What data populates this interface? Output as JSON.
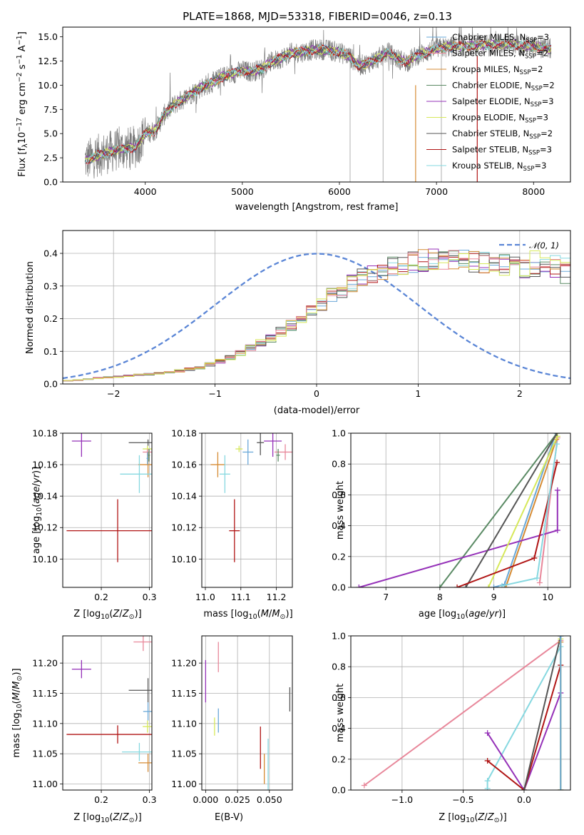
{
  "title": "PLATE=1868, MJD=53318, FIBERID=0046, z=0.13",
  "colors": {
    "Chabrier MILES": "#6aa8d8",
    "Salpeter MILES": "#e8879a",
    "Kroupa MILES": "#d58b34",
    "Chabrier ELODIE": "#5a8a64",
    "Salpeter ELODIE": "#9531b8",
    "Kroupa ELODIE": "#d6e85a",
    "Chabrier STELIB": "#555555",
    "Salpeter STELIB": "#b01414",
    "Kroupa STELIB": "#86d8e0",
    "data": "#7a7a7a",
    "gaussian": "#5b86d6"
  },
  "chart_data": [
    {
      "type": "line",
      "panel": "spectrum",
      "title": "PLATE=1868, MJD=53318, FIBERID=0046, z=0.13",
      "xlabel": "wavelength [Angstrom, rest frame]",
      "ylabel": "Flux [fλ10⁻¹⁷ erg cm⁻² s⁻¹ A⁻¹]",
      "xlim": [
        3150,
        8380
      ],
      "ylim": [
        0,
        16
      ],
      "xticks": [
        4000,
        5000,
        6000,
        7000,
        8000
      ],
      "yticks": [
        0.0,
        2.5,
        5.0,
        7.5,
        10.0,
        12.5,
        15.0
      ],
      "legend_position": "top-right",
      "legend": [
        "Chabrier MILES, N_SSP=3",
        "Salpeter MILES, N_SSP=2",
        "Kroupa MILES, N_SSP=2",
        "Chabrier ELODIE, N_SSP=2",
        "Salpeter ELODIE, N_SSP=3",
        "Kroupa ELODIE, N_SSP=3",
        "Chabrier STELIB, N_SSP=2",
        "Salpeter STELIB, N_SSP=3",
        "Kroupa STELIB, N_SSP=3"
      ],
      "continuum": {
        "x": [
          3380,
          3500,
          3700,
          3900,
          4000,
          4100,
          4200,
          4300,
          4400,
          4500,
          4600,
          4700,
          4800,
          4900,
          5000,
          5100,
          5200,
          5300,
          5400,
          5500,
          5600,
          5700,
          5800,
          5900,
          6000,
          6100,
          6200,
          6300,
          6400,
          6500,
          6600,
          6700,
          6800,
          6900,
          7000,
          7200,
          7400,
          7600,
          7800,
          8000,
          8200
        ],
        "y": [
          2.2,
          2.7,
          3.3,
          3.6,
          5.0,
          5.3,
          7.0,
          8.0,
          8.6,
          9.3,
          9.9,
          10.3,
          10.9,
          11.2,
          11.5,
          11.4,
          11.7,
          12.4,
          12.8,
          13.3,
          13.4,
          13.6,
          13.7,
          13.6,
          13.4,
          13.0,
          12.0,
          12.3,
          12.8,
          13.4,
          12.7,
          12.4,
          13.1,
          13.4,
          13.8,
          14.0,
          14.1,
          14.2,
          14.2,
          14.0,
          13.7
        ]
      }
    },
    {
      "type": "line",
      "panel": "residual-histogram",
      "xlabel": "(data-model)/error",
      "ylabel": "Normed distribution",
      "xlim": [
        -2.5,
        2.5
      ],
      "ylim": [
        0,
        0.47
      ],
      "xticks": [
        -2,
        -1,
        0,
        1,
        2
      ],
      "yticks": [
        0.0,
        0.1,
        0.2,
        0.3,
        0.4
      ],
      "legend_position": "top-right",
      "legend": [
        "𝒩(0, 1)"
      ],
      "bin_width": 0.1,
      "bin_start": -2.5,
      "envelope": [
        0.01,
        0.012,
        0.015,
        0.018,
        0.02,
        0.022,
        0.025,
        0.028,
        0.03,
        0.033,
        0.036,
        0.04,
        0.045,
        0.05,
        0.06,
        0.07,
        0.08,
        0.095,
        0.11,
        0.125,
        0.14,
        0.16,
        0.18,
        0.2,
        0.22,
        0.245,
        0.27,
        0.29,
        0.31,
        0.325,
        0.34,
        0.35,
        0.36,
        0.368,
        0.374,
        0.378,
        0.38,
        0.382,
        0.38,
        0.378,
        0.375,
        0.372,
        0.368,
        0.364,
        0.36,
        0.355,
        0.35,
        0.345,
        0.34,
        0.335,
        0.33,
        0.32,
        0.31,
        0.3,
        0.29,
        0.28,
        0.27,
        0.255,
        0.24,
        0.225,
        0.21,
        0.195,
        0.18,
        0.165,
        0.15,
        0.14,
        0.13,
        0.12,
        0.11,
        0.1,
        0.09,
        0.08,
        0.07,
        0.065,
        0.06,
        0.055,
        0.05,
        0.045,
        0.04,
        0.035,
        0.03,
        0.028,
        0.025,
        0.022,
        0.02,
        0.018,
        0.016,
        0.014,
        0.012,
        0.01
      ]
    },
    {
      "type": "scatter",
      "panel": "age-vs-Z",
      "xlabel": "Z [log10(Z/Z⊙)]",
      "ylabel": "age  [log10(age/yr)]",
      "xlim": [
        0.12,
        0.305
      ],
      "ylim": [
        10.082,
        10.18
      ],
      "xticks": [
        0.2,
        0.3
      ],
      "yticks": [
        10.1,
        10.12,
        10.14,
        10.16,
        10.18
      ],
      "points": [
        {
          "model": "Salpeter ELODIE",
          "x": 0.159,
          "xerr": 0.02,
          "y": 10.175,
          "yerr": 0.01
        },
        {
          "model": "Chabrier STELIB",
          "x": 0.297,
          "xerr": 0.04,
          "y": 10.174,
          "yerr": 0.002
        },
        {
          "model": "Kroupa ELODIE",
          "x": 0.296,
          "xerr": 0.01,
          "y": 10.17,
          "yerr": 0.002
        },
        {
          "model": "Salpeter MILES",
          "x": 0.296,
          "xerr": 0.01,
          "y": 10.168,
          "yerr": 0.002
        },
        {
          "model": "Kroupa MILES",
          "x": 0.297,
          "xerr": 0.02,
          "y": 10.16,
          "yerr": 0.008
        },
        {
          "model": "Chabrier ELODIE",
          "x": 0.299,
          "xerr": 0.002,
          "y": 10.166,
          "yerr": 0.004
        },
        {
          "model": "Chabrier MILES",
          "x": 0.296,
          "xerr": 0.002,
          "y": 10.164,
          "yerr": 0.004
        },
        {
          "model": "Kroupa STELIB",
          "x": 0.279,
          "xerr": 0.04,
          "y": 10.154,
          "yerr": 0.012
        },
        {
          "model": "Salpeter STELIB",
          "x": 0.234,
          "xerr": 0.106,
          "y": 10.118,
          "yerr": 0.02
        }
      ]
    },
    {
      "type": "scatter",
      "panel": "age-vs-mass",
      "xlabel": "mass [log10(M/M⊙)]",
      "ylabel": "",
      "xlim": [
        10.99,
        11.245
      ],
      "ylim": [
        10.082,
        10.18
      ],
      "xticks": [
        11.0,
        11.1,
        11.2
      ],
      "yticks": [
        10.1,
        10.12,
        10.14,
        10.16,
        10.18
      ],
      "points": [
        {
          "model": "Salpeter ELODIE",
          "x": 11.19,
          "xerr": 0.025,
          "y": 10.175,
          "yerr": 0.01
        },
        {
          "model": "Chabrier STELIB",
          "x": 11.155,
          "xerr": 0.01,
          "y": 10.174,
          "yerr": 0.008
        },
        {
          "model": "Kroupa ELODIE",
          "x": 11.095,
          "xerr": 0.01,
          "y": 10.17,
          "yerr": 0.002
        },
        {
          "model": "Salpeter MILES",
          "x": 11.225,
          "xerr": 0.03,
          "y": 10.168,
          "yerr": 0.005
        },
        {
          "model": "Kroupa MILES",
          "x": 11.035,
          "xerr": 0.02,
          "y": 10.16,
          "yerr": 0.008
        },
        {
          "model": "Chabrier ELODIE",
          "x": 11.205,
          "xerr": 0.005,
          "y": 10.166,
          "yerr": 0.004
        },
        {
          "model": "Chabrier MILES",
          "x": 11.12,
          "xerr": 0.015,
          "y": 10.168,
          "yerr": 0.008
        },
        {
          "model": "Kroupa STELIB",
          "x": 11.055,
          "xerr": 0.015,
          "y": 10.154,
          "yerr": 0.012
        },
        {
          "model": "Salpeter STELIB",
          "x": 11.082,
          "xerr": 0.015,
          "y": 10.118,
          "yerr": 0.02
        }
      ]
    },
    {
      "type": "line",
      "panel": "weight-vs-age",
      "xlabel": "age  [log10(age/yr)]",
      "ylabel": "mass weight",
      "xlim": [
        6.35,
        10.42
      ],
      "ylim": [
        0,
        1.0
      ],
      "xticks": [
        7,
        8,
        9,
        10
      ],
      "yticks": [
        0.0,
        0.2,
        0.4,
        0.6,
        0.8,
        1.0
      ],
      "series": [
        {
          "model": "Chabrier MILES",
          "x": [
            9.0,
            9.2,
            10.15
          ],
          "y": [
            0.0,
            0.02,
            1.0
          ]
        },
        {
          "model": "Salpeter MILES",
          "x": [
            9.85,
            10.18
          ],
          "y": [
            0.03,
            0.97
          ]
        },
        {
          "model": "Kroupa MILES",
          "x": [
            9.22,
            10.16
          ],
          "y": [
            0.0,
            0.96
          ]
        },
        {
          "model": "Chabrier ELODIE",
          "x": [
            8.0,
            10.17
          ],
          "y": [
            0.0,
            1.0
          ]
        },
        {
          "model": "Salpeter ELODIE",
          "x": [
            6.5,
            10.18,
            10.18
          ],
          "y": [
            0.0,
            0.37,
            0.63
          ]
        },
        {
          "model": "Kroupa ELODIE",
          "x": [
            8.9,
            10.18
          ],
          "y": [
            0.0,
            0.98
          ]
        },
        {
          "model": "Chabrier STELIB",
          "x": [
            8.48,
            10.17
          ],
          "y": [
            0.0,
            1.0
          ]
        },
        {
          "model": "Salpeter STELIB",
          "x": [
            8.32,
            9.75,
            10.17
          ],
          "y": [
            0.0,
            0.19,
            0.81
          ]
        },
        {
          "model": "Kroupa STELIB",
          "x": [
            9.15,
            9.8,
            10.17
          ],
          "y": [
            0.01,
            0.06,
            0.93
          ]
        }
      ]
    },
    {
      "type": "scatter",
      "panel": "mass-vs-Z",
      "xlabel": "Z [log10(Z/Z⊙)]",
      "ylabel": "mass [log10(M/M⊙)]",
      "xlim": [
        0.12,
        0.305
      ],
      "ylim": [
        10.99,
        11.245
      ],
      "xticks": [
        0.2,
        0.3
      ],
      "yticks": [
        11.0,
        11.05,
        11.1,
        11.15,
        11.2
      ],
      "points": [
        {
          "model": "Salpeter ELODIE",
          "x": 0.159,
          "xerr": 0.02,
          "y": 11.19,
          "yerr": 0.015
        },
        {
          "model": "Salpeter MILES",
          "x": 0.287,
          "xerr": 0.02,
          "y": 11.235,
          "yerr": 0.015
        },
        {
          "model": "Chabrier STELIB",
          "x": 0.297,
          "xerr": 0.04,
          "y": 11.155,
          "yerr": 0.02
        },
        {
          "model": "Chabrier MILES",
          "x": 0.297,
          "xerr": 0.01,
          "y": 11.12,
          "yerr": 0.015
        },
        {
          "model": "Kroupa ELODIE",
          "x": 0.296,
          "xerr": 0.01,
          "y": 11.095,
          "yerr": 0.01
        },
        {
          "model": "Salpeter STELIB",
          "x": 0.234,
          "xerr": 0.106,
          "y": 11.082,
          "yerr": 0.015
        },
        {
          "model": "Kroupa STELIB",
          "x": 0.279,
          "xerr": 0.036,
          "y": 11.053,
          "yerr": 0.015
        },
        {
          "model": "Kroupa MILES",
          "x": 0.297,
          "xerr": 0.02,
          "y": 11.035,
          "yerr": 0.015
        }
      ]
    },
    {
      "type": "scatter",
      "panel": "mass-vs-EBV",
      "xlabel": "E(B-V)",
      "ylabel": "",
      "xlim": [
        -0.003,
        0.068
      ],
      "ylim": [
        10.99,
        11.245
      ],
      "xticks": [
        0.0,
        0.025,
        0.05
      ],
      "yticks": [
        11.0,
        11.05,
        11.1,
        11.15,
        11.2
      ],
      "points": [
        {
          "model": "Salpeter ELODIE",
          "x": 0.0,
          "y": 11.17,
          "yerr": 0.035
        },
        {
          "model": "Salpeter MILES",
          "x": 0.01,
          "y": 11.21,
          "yerr": 0.025
        },
        {
          "model": "Chabrier STELIB",
          "x": 0.066,
          "y": 11.14,
          "yerr": 0.02
        },
        {
          "model": "Chabrier MILES",
          "x": 0.01,
          "y": 11.105,
          "yerr": 0.02
        },
        {
          "model": "Kroupa ELODIE",
          "x": 0.007,
          "y": 11.095,
          "yerr": 0.015
        },
        {
          "model": "Salpeter STELIB",
          "x": 0.043,
          "y": 11.06,
          "yerr": 0.035
        },
        {
          "model": "Kroupa MILES",
          "x": 0.046,
          "y": 11.025,
          "yerr": 0.025
        },
        {
          "model": "Kroupa STELIB",
          "x": 0.049,
          "y": 11.03,
          "yerr": 0.045
        }
      ]
    },
    {
      "type": "line",
      "panel": "weight-vs-Z",
      "xlabel": "Z [log10(Z/Z⊙)]",
      "ylabel": "mass weight",
      "xlim": [
        -1.42,
        0.38
      ],
      "ylim": [
        0,
        1.0
      ],
      "xticks": [
        -1.0,
        -0.5,
        0.0
      ],
      "yticks": [
        0.0,
        0.2,
        0.4,
        0.6,
        0.8,
        1.0
      ],
      "series": [
        {
          "model": "Salpeter MILES",
          "x": [
            -1.31,
            0.3
          ],
          "y": [
            0.03,
            0.97
          ]
        },
        {
          "model": "Kroupa STELIB",
          "x": [
            -0.3,
            -0.3,
            0.3
          ],
          "y": [
            0.01,
            0.06,
            0.93
          ]
        },
        {
          "model": "Salpeter ELODIE",
          "x": [
            -0.3,
            0.0,
            0.3
          ],
          "y": [
            0.37,
            0.0,
            0.63
          ]
        },
        {
          "model": "Salpeter STELIB",
          "x": [
            -0.3,
            0.0,
            0.3
          ],
          "y": [
            0.19,
            0.0,
            0.81
          ]
        },
        {
          "model": "Chabrier STELIB",
          "x": [
            0.0,
            0.3
          ],
          "y": [
            0.0,
            1.0
          ]
        },
        {
          "model": "Chabrier ELODIE",
          "x": [
            0.3,
            0.3
          ],
          "y": [
            0.0,
            1.0
          ]
        },
        {
          "model": "Kroupa MILES",
          "x": [
            0.3,
            0.3
          ],
          "y": [
            0.0,
            0.96
          ]
        },
        {
          "model": "Kroupa ELODIE",
          "x": [
            0.3,
            0.3
          ],
          "y": [
            0.0,
            0.98
          ]
        },
        {
          "model": "Chabrier MILES",
          "x": [
            0.3,
            0.3
          ],
          "y": [
            0.0,
            1.0
          ]
        }
      ]
    }
  ]
}
